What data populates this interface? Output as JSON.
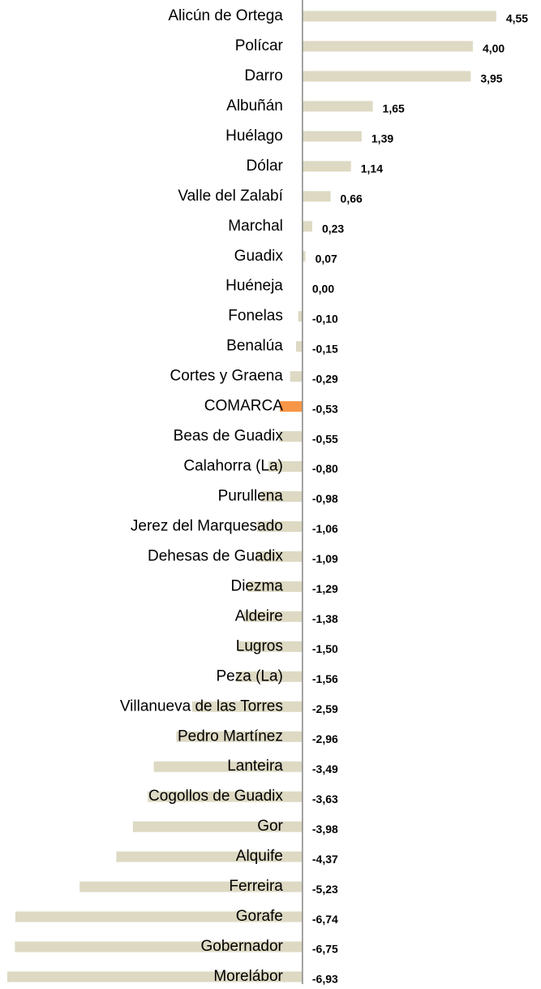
{
  "chart_data": {
    "type": "barh",
    "categories": [
      "Alicún de Ortega",
      "Polícar",
      "Darro",
      "Albuñán",
      "Huélago",
      "Dólar",
      "Valle del Zalabí",
      "Marchal",
      "Guadix",
      "Huéneja",
      "Fonelas",
      "Benalúa",
      "Cortes y Graena",
      "COMARCA",
      "Beas de Guadix",
      "Calahorra (La)",
      "Purullena",
      "Jerez del Marquesado",
      "Dehesas de Guadix",
      "Diezma",
      "Aldeire",
      "Lugros",
      "Peza (La)",
      "Villanueva de las Torres",
      "Pedro Martínez",
      "Lanteira",
      "Cogollos de Guadix",
      "Gor",
      "Alquife",
      "Ferreira",
      "Gorafe",
      "Gobernador",
      "Morelábor"
    ],
    "values": [
      4.55,
      4.0,
      3.95,
      1.65,
      1.39,
      1.14,
      0.66,
      0.23,
      0.07,
      0.0,
      -0.1,
      -0.15,
      -0.29,
      -0.53,
      -0.55,
      -0.8,
      -0.98,
      -1.06,
      -1.09,
      -1.29,
      -1.38,
      -1.5,
      -1.56,
      -2.59,
      -2.96,
      -3.49,
      -3.63,
      -3.98,
      -4.37,
      -5.23,
      -6.74,
      -6.75,
      -6.93
    ],
    "value_labels": [
      "4,55",
      "4,00",
      "3,95",
      "1,65",
      "1,39",
      "1,14",
      "0,66",
      "0,23",
      "0,07",
      "0,00",
      "-0,10",
      "-0,15",
      "-0,29",
      "-0,53",
      "-0,55",
      "-0,80",
      "-0,98",
      "-1,06",
      "-1,09",
      "-1,29",
      "-1,38",
      "-1,50",
      "-1,56",
      "-2,59",
      "-2,96",
      "-3,49",
      "-3,63",
      "-3,98",
      "-4,37",
      "-5,23",
      "-6,74",
      "-6,75",
      "-6,93"
    ],
    "colors": [
      "#ddd9c3",
      "#ddd9c3",
      "#ddd9c3",
      "#ddd9c3",
      "#ddd9c3",
      "#ddd9c3",
      "#ddd9c3",
      "#ddd9c3",
      "#ddd9c3",
      "#ddd9c3",
      "#ddd9c3",
      "#ddd9c3",
      "#ddd9c3",
      "#f79646",
      "#ddd9c3",
      "#ddd9c3",
      "#ddd9c3",
      "#ddd9c3",
      "#ddd9c3",
      "#ddd9c3",
      "#ddd9c3",
      "#ddd9c3",
      "#ddd9c3",
      "#ddd9c3",
      "#ddd9c3",
      "#ddd9c3",
      "#ddd9c3",
      "#ddd9c3",
      "#ddd9c3",
      "#ddd9c3",
      "#ddd9c3",
      "#ddd9c3",
      "#ddd9c3"
    ],
    "xlim": [
      -7.1,
      5.6
    ]
  }
}
